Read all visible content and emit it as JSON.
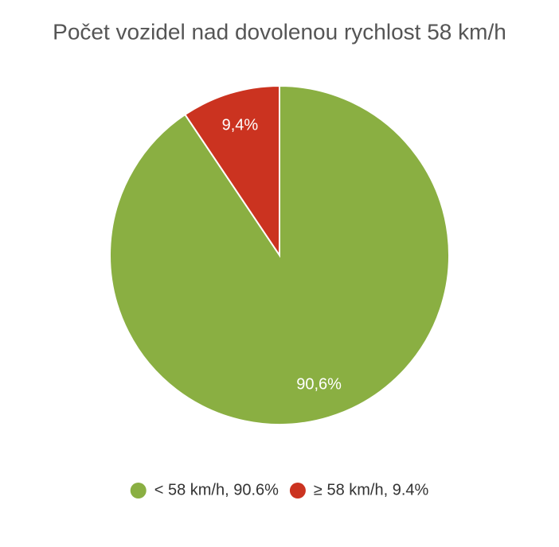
{
  "chart_data": {
    "type": "pie",
    "title": "Počet vozidel nad dovolenou rychlost 58 km/h",
    "categories": [
      "< 58 km/h, 90.6%",
      "≥ 58 km/h, 9.4%"
    ],
    "values": [
      90.6,
      9.4
    ],
    "value_labels": [
      "90,6%",
      "9,4%"
    ],
    "colors": [
      "#8aaf42",
      "#cb3320"
    ]
  }
}
